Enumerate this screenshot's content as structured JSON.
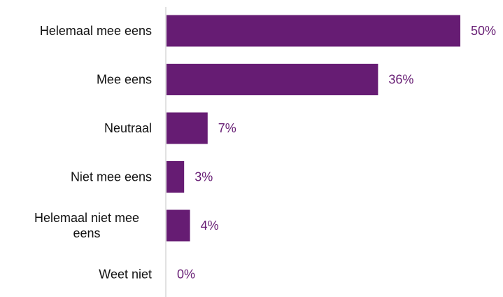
{
  "chart_data": {
    "type": "bar",
    "orientation": "horizontal",
    "categories": [
      [
        "Helemaal mee eens"
      ],
      [
        "Mee eens"
      ],
      [
        "Neutraal"
      ],
      [
        "Niet mee eens"
      ],
      [
        "Helemaal niet mee",
        "eens"
      ],
      [
        "Weet niet"
      ]
    ],
    "values": [
      50,
      36,
      7,
      3,
      4,
      0
    ],
    "value_labels": [
      "50%",
      "36%",
      "7%",
      "3%",
      "4%",
      "0%"
    ],
    "xlim": [
      0,
      50
    ],
    "title": "",
    "xlabel": "",
    "ylabel": "",
    "grid": false,
    "bar_color": "#661c73",
    "label_color": "#661c73",
    "axis_color": "#d9d9d9"
  }
}
